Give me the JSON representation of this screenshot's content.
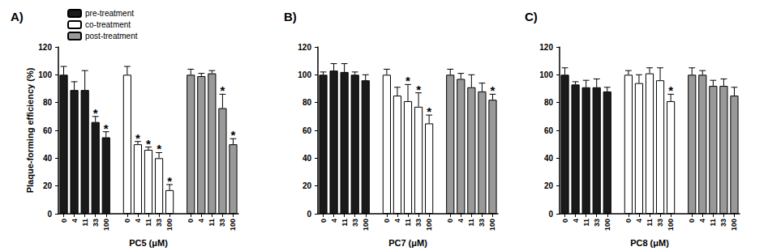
{
  "chart_data": [
    {
      "type": "bar",
      "title": "A)",
      "x_label": "PC5 (μM)",
      "y_label": "Plaque-forming efficiency (%)",
      "categories": [
        "0",
        "4",
        "11",
        "33",
        "100",
        null,
        "0",
        "4",
        "11",
        "33",
        "100",
        null,
        "0",
        "4",
        "11",
        "33",
        "100"
      ],
      "ylim": [
        0,
        120
      ],
      "yticks": [
        0,
        20,
        40,
        60,
        80,
        100,
        120
      ],
      "legend": "top-left",
      "series": [
        {
          "name": "pre-treatment",
          "color": "#1a1a1a",
          "values": [
            100,
            89,
            89,
            66,
            55,
            null,
            null,
            null,
            null,
            null,
            null,
            null,
            null,
            null,
            null,
            null,
            null
          ],
          "errors": [
            6,
            6,
            14,
            4,
            4,
            null,
            null,
            null,
            null,
            null,
            null,
            null,
            null,
            null,
            null,
            null,
            null
          ],
          "annotations": [
            null,
            null,
            null,
            "*",
            "*",
            null,
            null,
            null,
            null,
            null,
            null,
            null,
            null,
            null,
            null,
            null,
            null
          ]
        },
        {
          "name": "co-treatment",
          "color": "#ffffff",
          "values": [
            null,
            null,
            null,
            null,
            null,
            null,
            100,
            50,
            46,
            40,
            17,
            null,
            null,
            null,
            null,
            null,
            null
          ],
          "errors": [
            null,
            null,
            null,
            null,
            null,
            null,
            6,
            2,
            2,
            4,
            4,
            null,
            null,
            null,
            null,
            null,
            null
          ],
          "annotations": [
            null,
            null,
            null,
            null,
            null,
            null,
            null,
            "*",
            "*",
            "*",
            "*",
            null,
            null,
            null,
            null,
            null,
            null
          ]
        },
        {
          "name": "post-treatment",
          "color": "#999999",
          "values": [
            null,
            null,
            null,
            null,
            null,
            null,
            null,
            null,
            null,
            null,
            null,
            null,
            100,
            99,
            101,
            76,
            50
          ],
          "errors": [
            null,
            null,
            null,
            null,
            null,
            null,
            null,
            null,
            null,
            null,
            null,
            null,
            4,
            2,
            2,
            10,
            4
          ],
          "annotations": [
            null,
            null,
            null,
            null,
            null,
            null,
            null,
            null,
            null,
            null,
            null,
            null,
            null,
            null,
            null,
            "*",
            "*"
          ]
        }
      ]
    },
    {
      "type": "bar",
      "title": "B)",
      "x_label": "PC7 (μM)",
      "categories": [
        "0",
        "4",
        "11",
        "33",
        "100",
        null,
        "0",
        "4",
        "11",
        "33",
        "100",
        null,
        "0",
        "4",
        "11",
        "33",
        "100"
      ],
      "ylim": [
        0,
        120
      ],
      "yticks": [
        0,
        20,
        40,
        60,
        80,
        100,
        120
      ],
      "series": [
        {
          "color": "#1a1a1a",
          "values": [
            100,
            103,
            102,
            100,
            96,
            null,
            null,
            null,
            null,
            null,
            null,
            null,
            null,
            null,
            null,
            null,
            null
          ],
          "errors": [
            2,
            5,
            6,
            2,
            4,
            null,
            null,
            null,
            null,
            null,
            null,
            null,
            null,
            null,
            null,
            null,
            null
          ],
          "annotations": [
            null,
            null,
            null,
            null,
            null,
            null,
            null,
            null,
            null,
            null,
            null,
            null,
            null,
            null,
            null,
            null,
            null
          ]
        },
        {
          "color": "#ffffff",
          "values": [
            null,
            null,
            null,
            null,
            null,
            null,
            100,
            85,
            81,
            77,
            65,
            null,
            null,
            null,
            null,
            null,
            null
          ],
          "errors": [
            null,
            null,
            null,
            null,
            null,
            null,
            4,
            6,
            12,
            10,
            6,
            null,
            null,
            null,
            null,
            null,
            null
          ],
          "annotations": [
            null,
            null,
            null,
            null,
            null,
            null,
            null,
            null,
            "*",
            "*",
            "*",
            null,
            null,
            null,
            null,
            null,
            null
          ]
        },
        {
          "color": "#999999",
          "values": [
            null,
            null,
            null,
            null,
            null,
            null,
            null,
            null,
            null,
            null,
            null,
            null,
            100,
            97,
            91,
            88,
            82
          ],
          "errors": [
            null,
            null,
            null,
            null,
            null,
            null,
            null,
            null,
            null,
            null,
            null,
            null,
            4,
            4,
            9,
            6,
            4
          ],
          "annotations": [
            null,
            null,
            null,
            null,
            null,
            null,
            null,
            null,
            null,
            null,
            null,
            null,
            null,
            null,
            null,
            null,
            "*"
          ]
        }
      ]
    },
    {
      "type": "bar",
      "title": "C)",
      "x_label": "PC8 (μM)",
      "categories": [
        "0",
        "4",
        "11",
        "33",
        "100",
        null,
        "0",
        "4",
        "11",
        "33",
        "100",
        null,
        "0",
        "4",
        "11",
        "33",
        "100"
      ],
      "ylim": [
        0,
        120
      ],
      "yticks": [
        0,
        20,
        40,
        60,
        80,
        100,
        120
      ],
      "series": [
        {
          "color": "#1a1a1a",
          "values": [
            100,
            93,
            91,
            91,
            88,
            null,
            null,
            null,
            null,
            null,
            null,
            null,
            null,
            null,
            null,
            null,
            null
          ],
          "errors": [
            5,
            2,
            5,
            6,
            3,
            null,
            null,
            null,
            null,
            null,
            null,
            null,
            null,
            null,
            null,
            null,
            null
          ],
          "annotations": [
            null,
            null,
            null,
            null,
            null,
            null,
            null,
            null,
            null,
            null,
            null,
            null,
            null,
            null,
            null,
            null,
            null
          ]
        },
        {
          "color": "#ffffff",
          "values": [
            null,
            null,
            null,
            null,
            null,
            null,
            100,
            94,
            101,
            96,
            81,
            null,
            null,
            null,
            null,
            null,
            null
          ],
          "errors": [
            null,
            null,
            null,
            null,
            null,
            null,
            3,
            6,
            4,
            9,
            5,
            null,
            null,
            null,
            null,
            null,
            null
          ],
          "annotations": [
            null,
            null,
            null,
            null,
            null,
            null,
            null,
            null,
            null,
            null,
            "*",
            null,
            null,
            null,
            null,
            null,
            null
          ]
        },
        {
          "color": "#999999",
          "values": [
            null,
            null,
            null,
            null,
            null,
            null,
            null,
            null,
            null,
            null,
            null,
            null,
            100,
            100,
            92,
            92,
            85
          ],
          "errors": [
            null,
            null,
            null,
            null,
            null,
            null,
            null,
            null,
            null,
            null,
            null,
            null,
            5,
            3,
            4,
            5,
            6
          ],
          "annotations": [
            null,
            null,
            null,
            null,
            null,
            null,
            null,
            null,
            null,
            null,
            null,
            null,
            null,
            null,
            null,
            null,
            null
          ]
        }
      ]
    }
  ]
}
